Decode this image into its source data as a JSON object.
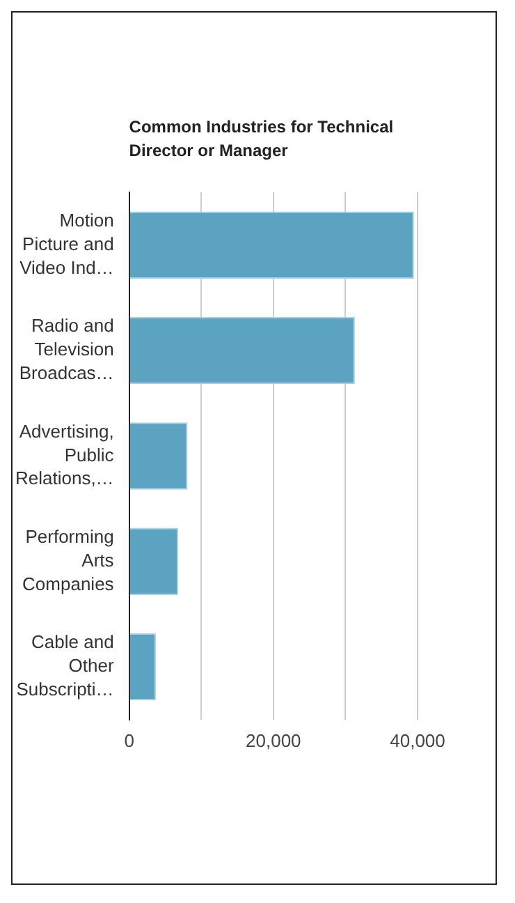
{
  "chart_data": {
    "type": "bar",
    "orientation": "horizontal",
    "title": "Common Industries for Technical Director or Manager",
    "categories": [
      "Motion Picture and Video Ind…",
      "Radio and Television Broadcas…",
      "Advertising, Public Relations,…",
      "Performing Arts Companies",
      "Cable and Other Subscripti…"
    ],
    "values": [
      39500,
      31300,
      8100,
      6800,
      3700
    ],
    "color": "#5ba3c0",
    "xlim": [
      0,
      40000
    ],
    "xticks": [
      0,
      {
        "value": 10000,
        "label": null
      },
      {
        "value": 20000,
        "label": "20,000"
      },
      {
        "value": 30000,
        "label": null
      },
      {
        "value": 40000,
        "label": "40,000"
      }
    ],
    "grid": true,
    "legend": false
  }
}
